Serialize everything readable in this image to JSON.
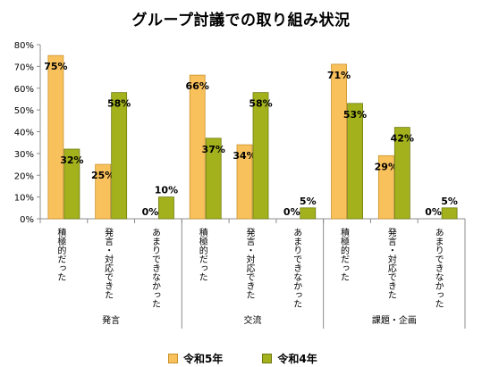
{
  "chart_data": {
    "type": "bar",
    "title": "グループ討議での取り組み状況",
    "groups": [
      {
        "name": "発言",
        "categories": [
          "積極的だった",
          "発言・対応できた",
          "あまりできなかった"
        ]
      },
      {
        "name": "交流",
        "categories": [
          "積極的だった",
          "発言・対応できた",
          "あまりできなかった"
        ]
      },
      {
        "name": "課題・企画",
        "categories": [
          "積極的だった",
          "発言・対応できた",
          "あまりできなかった"
        ]
      }
    ],
    "series": [
      {
        "name": "令和5年",
        "color": "#f9c15c",
        "values": [
          75,
          25,
          0,
          66,
          34,
          0,
          71,
          29,
          0
        ]
      },
      {
        "name": "令和4年",
        "color": "#a3b21c",
        "values": [
          32,
          58,
          10,
          37,
          58,
          5,
          53,
          42,
          5
        ]
      }
    ],
    "data_labels": {
      "令和5年": [
        "75%",
        "25%",
        "0%",
        "66%",
        "34%",
        "0%",
        "71%",
        "29%",
        "0%"
      ],
      "令和4年": [
        "32%",
        "58%",
        "10%",
        "37%",
        "58%",
        "5%",
        "53%",
        "42%",
        "5%"
      ]
    },
    "ylim": [
      0,
      80
    ],
    "yticks": [
      "0%",
      "10%",
      "20%",
      "30%",
      "40%",
      "50%",
      "60%",
      "70%",
      "80%"
    ],
    "grid": false,
    "legend_position": "bottom"
  }
}
